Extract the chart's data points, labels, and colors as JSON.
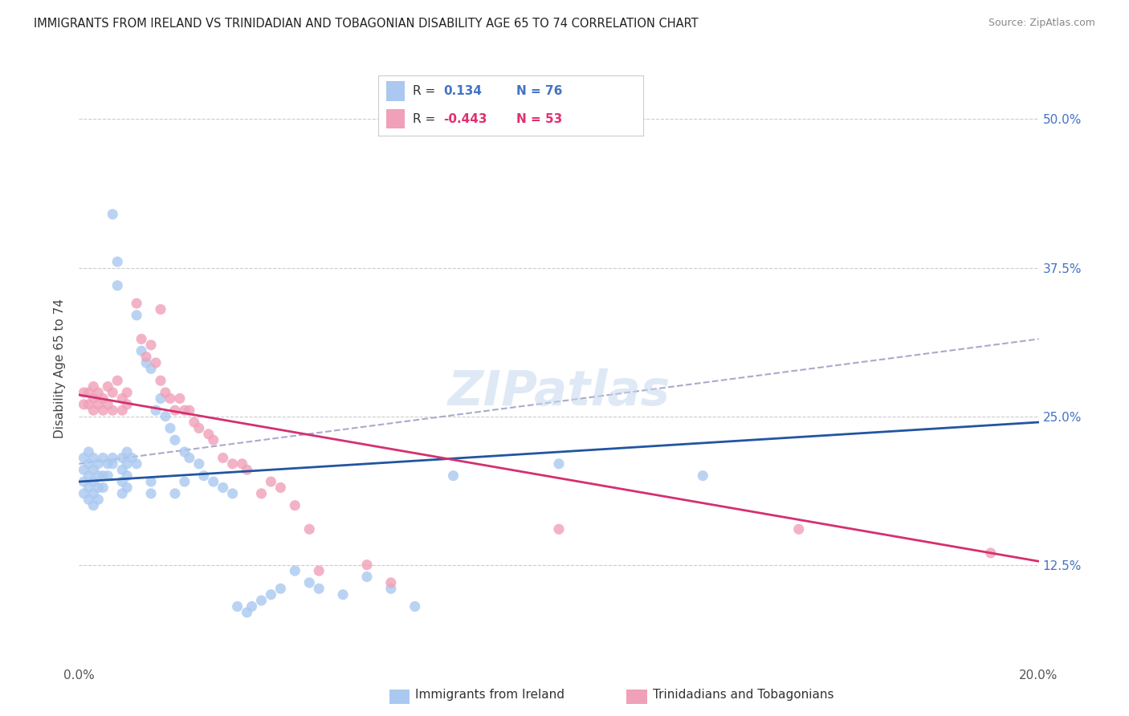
{
  "title": "IMMIGRANTS FROM IRELAND VS TRINIDADIAN AND TOBAGONIAN DISABILITY AGE 65 TO 74 CORRELATION CHART",
  "source": "Source: ZipAtlas.com",
  "ylabel": "Disability Age 65 to 74",
  "ytick_labels": [
    "50.0%",
    "37.5%",
    "25.0%",
    "12.5%"
  ],
  "ytick_values": [
    0.5,
    0.375,
    0.25,
    0.125
  ],
  "xlim": [
    0.0,
    0.2
  ],
  "ylim": [
    0.04,
    0.54
  ],
  "ireland_color": "#aac8f0",
  "ireland_line_color": "#2255a0",
  "tt_color": "#f0a0b8",
  "tt_line_color": "#d43070",
  "ireland_label": "Immigrants from Ireland",
  "tt_label": "Trinidadians and Tobagonians",
  "watermark": "ZIPatlas",
  "ireland_line": {
    "x0": 0.0,
    "y0": 0.195,
    "x1": 0.2,
    "y1": 0.245
  },
  "tt_line": {
    "x0": 0.0,
    "y0": 0.268,
    "x1": 0.2,
    "y1": 0.128
  },
  "dash_line": {
    "x0": 0.0,
    "y0": 0.21,
    "x1": 0.2,
    "y1": 0.315
  },
  "ireland_pts": [
    [
      0.001,
      0.215
    ],
    [
      0.001,
      0.205
    ],
    [
      0.001,
      0.195
    ],
    [
      0.001,
      0.185
    ],
    [
      0.002,
      0.22
    ],
    [
      0.002,
      0.21
    ],
    [
      0.002,
      0.2
    ],
    [
      0.002,
      0.19
    ],
    [
      0.002,
      0.18
    ],
    [
      0.003,
      0.215
    ],
    [
      0.003,
      0.205
    ],
    [
      0.003,
      0.195
    ],
    [
      0.003,
      0.185
    ],
    [
      0.003,
      0.175
    ],
    [
      0.004,
      0.21
    ],
    [
      0.004,
      0.2
    ],
    [
      0.004,
      0.19
    ],
    [
      0.004,
      0.18
    ],
    [
      0.005,
      0.215
    ],
    [
      0.005,
      0.2
    ],
    [
      0.005,
      0.19
    ],
    [
      0.006,
      0.21
    ],
    [
      0.006,
      0.2
    ],
    [
      0.007,
      0.215
    ],
    [
      0.007,
      0.21
    ],
    [
      0.007,
      0.42
    ],
    [
      0.008,
      0.38
    ],
    [
      0.008,
      0.36
    ],
    [
      0.009,
      0.215
    ],
    [
      0.009,
      0.205
    ],
    [
      0.009,
      0.195
    ],
    [
      0.009,
      0.185
    ],
    [
      0.01,
      0.22
    ],
    [
      0.01,
      0.21
    ],
    [
      0.01,
      0.2
    ],
    [
      0.01,
      0.19
    ],
    [
      0.011,
      0.215
    ],
    [
      0.012,
      0.21
    ],
    [
      0.012,
      0.335
    ],
    [
      0.013,
      0.305
    ],
    [
      0.014,
      0.295
    ],
    [
      0.015,
      0.29
    ],
    [
      0.015,
      0.195
    ],
    [
      0.015,
      0.185
    ],
    [
      0.016,
      0.255
    ],
    [
      0.017,
      0.265
    ],
    [
      0.018,
      0.25
    ],
    [
      0.019,
      0.24
    ],
    [
      0.02,
      0.23
    ],
    [
      0.02,
      0.185
    ],
    [
      0.022,
      0.22
    ],
    [
      0.022,
      0.195
    ],
    [
      0.023,
      0.215
    ],
    [
      0.025,
      0.21
    ],
    [
      0.026,
      0.2
    ],
    [
      0.028,
      0.195
    ],
    [
      0.03,
      0.19
    ],
    [
      0.032,
      0.185
    ],
    [
      0.033,
      0.09
    ],
    [
      0.035,
      0.085
    ],
    [
      0.036,
      0.09
    ],
    [
      0.038,
      0.095
    ],
    [
      0.04,
      0.1
    ],
    [
      0.042,
      0.105
    ],
    [
      0.045,
      0.12
    ],
    [
      0.048,
      0.11
    ],
    [
      0.05,
      0.105
    ],
    [
      0.055,
      0.1
    ],
    [
      0.06,
      0.115
    ],
    [
      0.065,
      0.105
    ],
    [
      0.07,
      0.09
    ],
    [
      0.078,
      0.2
    ],
    [
      0.1,
      0.21
    ],
    [
      0.13,
      0.2
    ]
  ],
  "tt_pts": [
    [
      0.001,
      0.27
    ],
    [
      0.001,
      0.26
    ],
    [
      0.002,
      0.27
    ],
    [
      0.002,
      0.26
    ],
    [
      0.003,
      0.275
    ],
    [
      0.003,
      0.265
    ],
    [
      0.003,
      0.255
    ],
    [
      0.004,
      0.27
    ],
    [
      0.004,
      0.26
    ],
    [
      0.005,
      0.265
    ],
    [
      0.005,
      0.255
    ],
    [
      0.006,
      0.275
    ],
    [
      0.006,
      0.26
    ],
    [
      0.007,
      0.27
    ],
    [
      0.007,
      0.255
    ],
    [
      0.008,
      0.28
    ],
    [
      0.009,
      0.265
    ],
    [
      0.009,
      0.255
    ],
    [
      0.01,
      0.27
    ],
    [
      0.01,
      0.26
    ],
    [
      0.012,
      0.345
    ],
    [
      0.013,
      0.315
    ],
    [
      0.014,
      0.3
    ],
    [
      0.015,
      0.31
    ],
    [
      0.016,
      0.295
    ],
    [
      0.017,
      0.34
    ],
    [
      0.017,
      0.28
    ],
    [
      0.018,
      0.27
    ],
    [
      0.019,
      0.265
    ],
    [
      0.02,
      0.255
    ],
    [
      0.021,
      0.265
    ],
    [
      0.022,
      0.255
    ],
    [
      0.023,
      0.255
    ],
    [
      0.024,
      0.245
    ],
    [
      0.025,
      0.24
    ],
    [
      0.027,
      0.235
    ],
    [
      0.028,
      0.23
    ],
    [
      0.03,
      0.215
    ],
    [
      0.032,
      0.21
    ],
    [
      0.034,
      0.21
    ],
    [
      0.035,
      0.205
    ],
    [
      0.038,
      0.185
    ],
    [
      0.04,
      0.195
    ],
    [
      0.042,
      0.19
    ],
    [
      0.045,
      0.175
    ],
    [
      0.048,
      0.155
    ],
    [
      0.05,
      0.12
    ],
    [
      0.06,
      0.125
    ],
    [
      0.065,
      0.11
    ],
    [
      0.1,
      0.155
    ],
    [
      0.15,
      0.155
    ],
    [
      0.19,
      0.135
    ]
  ]
}
